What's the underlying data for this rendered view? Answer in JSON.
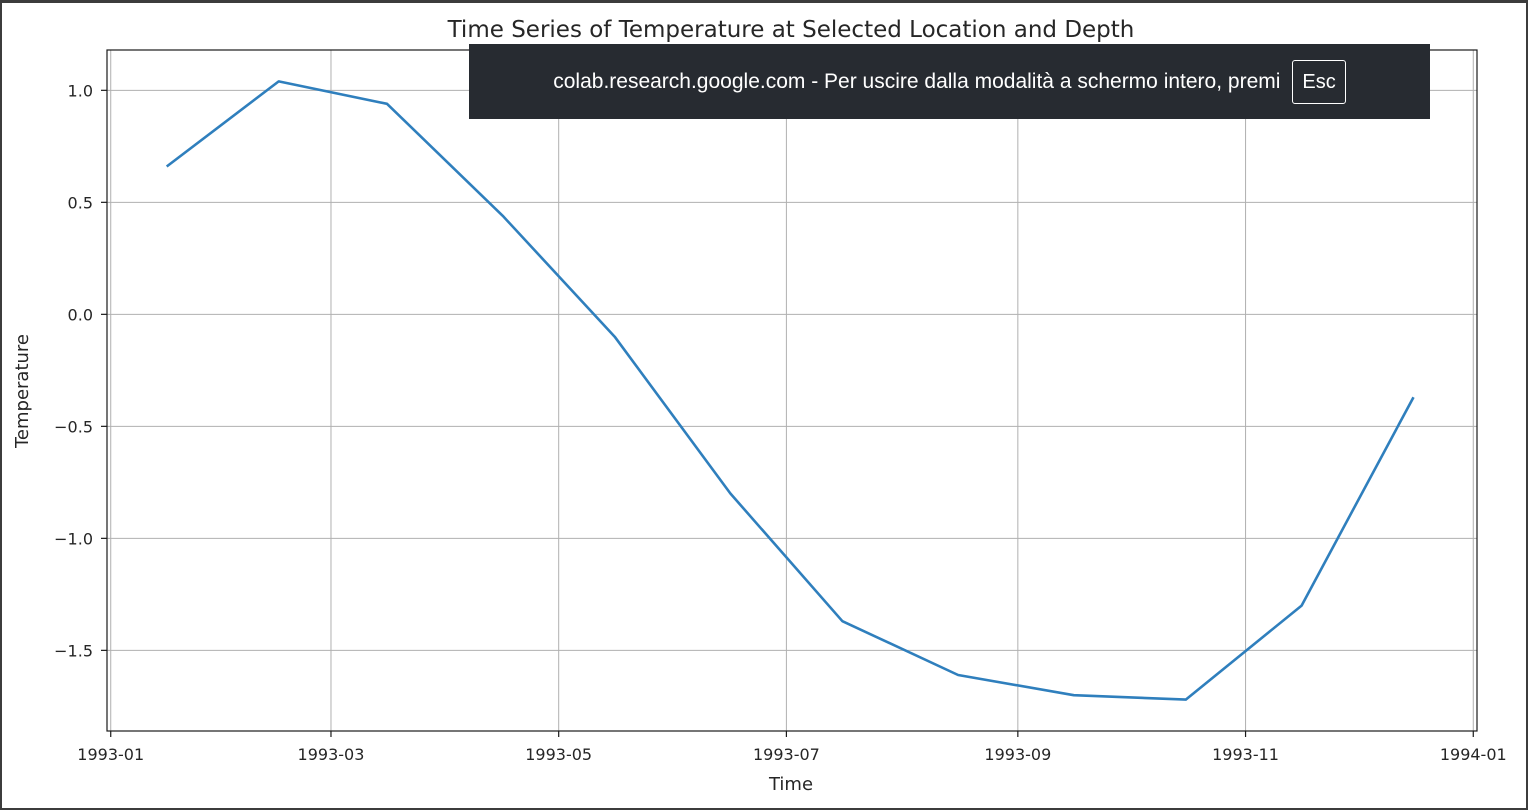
{
  "chart_data": {
    "type": "line",
    "title": "Time Series of Temperature at Selected Location and Depth",
    "xlabel": "Time",
    "ylabel": "Temperature",
    "x": [
      "1993-01-16",
      "1993-02-15",
      "1993-03-16",
      "1993-04-16",
      "1993-05-16",
      "1993-06-16",
      "1993-07-16",
      "1993-08-16",
      "1993-09-16",
      "1993-10-16",
      "1993-11-16",
      "1993-12-16"
    ],
    "series": [
      {
        "values": [
          0.66,
          1.04,
          0.94,
          0.44,
          -0.1,
          -0.8,
          -1.37,
          -1.61,
          -1.7,
          -1.72,
          -1.3,
          -0.37
        ]
      }
    ],
    "xticks": [
      "1993-01",
      "1993-03",
      "1993-05",
      "1993-07",
      "1993-09",
      "1993-11",
      "1994-01"
    ],
    "yticks": [
      1.0,
      0.5,
      0.0,
      -0.5,
      -1.0,
      -1.5
    ],
    "ytick_labels": [
      "1.0",
      "0.5",
      "0.0",
      "−0.5",
      "−1.0",
      "−1.5"
    ],
    "xlim": [
      "1992-12-31",
      "1994-01-02"
    ],
    "ylim": [
      -1.86,
      1.18
    ],
    "grid": true,
    "line_color": "#2f7fbd"
  },
  "notification": {
    "message": "colab.research.google.com - Per uscire dalla modalità a schermo intero, premi",
    "key": "Esc"
  }
}
